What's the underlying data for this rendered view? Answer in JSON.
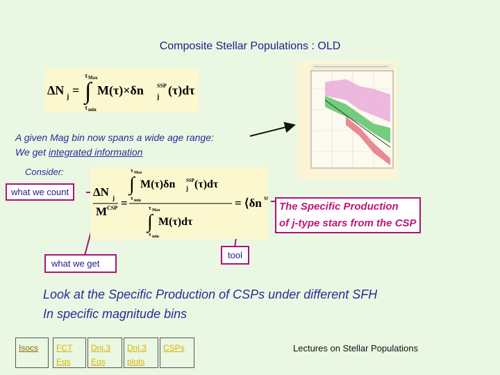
{
  "title": "Composite Stellar Populations : OLD",
  "text": {
    "age_range_line1": "A given Mag bin now spans a wide age range:",
    "age_range_line2_prefix": "We get ",
    "age_range_line2_link": "integrated information",
    "consider": "Consider:",
    "what_we_count": "what we count",
    "specific_production_line1": "The Specific Production",
    "specific_production_line2": "of j-type stars from the CSP",
    "tool": "tool",
    "what_we_get": "what we get",
    "look_line1": "Look at the Specific Production of CSPs  under different SFH",
    "look_line2": "In specific magnitude bins"
  },
  "nav": [
    {
      "line1": "Isocs",
      "line2": ""
    },
    {
      "line1": "FCT",
      "line2": "Eqs"
    },
    {
      "line1": "Dnj.3",
      "line2": "Eqs"
    },
    {
      "line1": "Dnj.3",
      "line2": "plots"
    },
    {
      "line1": "CSPs",
      "line2": ""
    }
  ],
  "footer": "Lectures on Stellar Populations",
  "colors": {
    "background": "#eaf7e2",
    "title": "#1d1d8c",
    "accent_magenta": "#c0147a",
    "equation_bg": "#fbf7cf"
  }
}
